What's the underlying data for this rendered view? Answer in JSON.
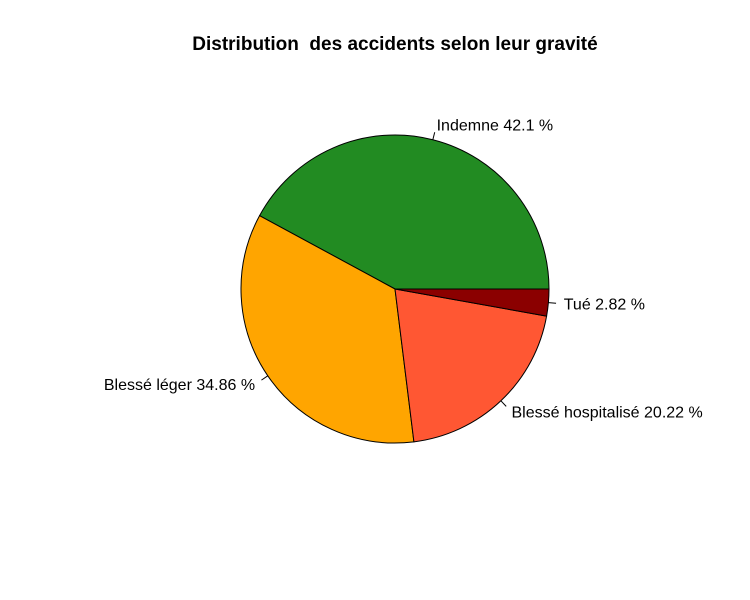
{
  "chart_data": {
    "type": "pie",
    "title": "Distribution  des accidents selon leur gravité",
    "start_angle_deg": 0,
    "direction": "counterclockwise",
    "slices": [
      {
        "label": "Indemne 42.1 %",
        "category": "Indemne",
        "value": 42.1,
        "color": "#228B22"
      },
      {
        "label": "Blessé léger 34.86 %",
        "category": "Blessé léger",
        "value": 34.86,
        "color": "#FFA500"
      },
      {
        "label": "Blessé hospitalisé 20.22 %",
        "category": "Blessé hospitalisé",
        "value": 20.22,
        "color": "#FF5733"
      },
      {
        "label": "Tué 2.82 %",
        "category": "Tué",
        "value": 2.82,
        "color": "#8B0000"
      }
    ],
    "legend": "none",
    "grid": false
  }
}
